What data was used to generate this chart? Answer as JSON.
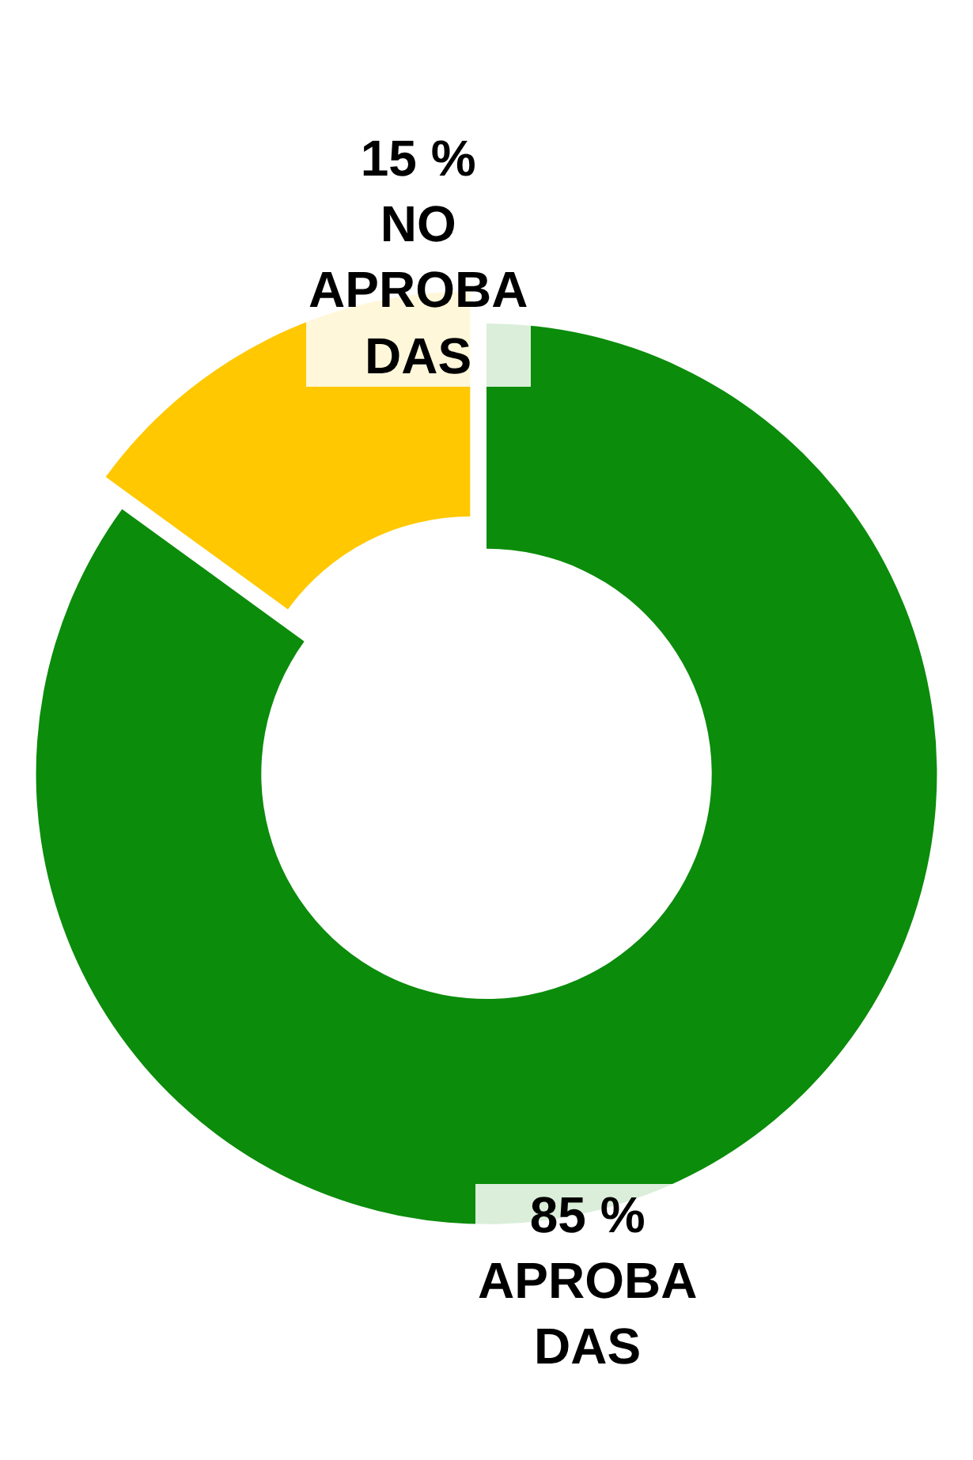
{
  "chart_data": {
    "type": "donut",
    "categories": [
      "APROBADAS",
      "NO APROBADAS"
    ],
    "values": [
      85,
      15
    ],
    "colors": [
      "#0b8c0b",
      "#ffc800"
    ],
    "value_labels": [
      "85 %",
      "15 %"
    ],
    "legend": false
  }
}
